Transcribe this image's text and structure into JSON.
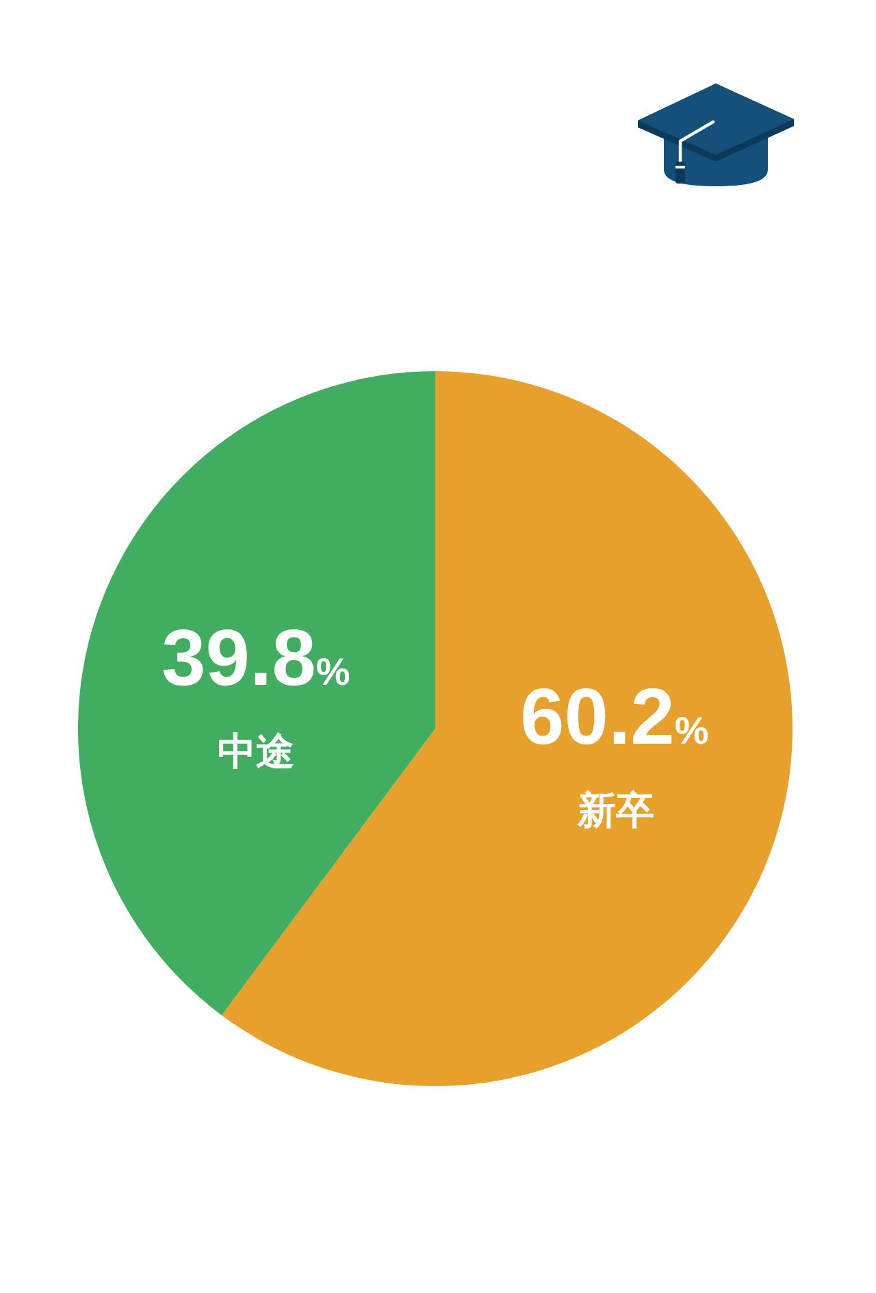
{
  "chart_data": {
    "type": "pie",
    "categories": [
      "新卒",
      "中途"
    ],
    "values": [
      60.2,
      39.8
    ],
    "colors": [
      "#e7a02b",
      "#41ad60"
    ],
    "value_labels": [
      "60.2%",
      "39.8%"
    ]
  }
}
